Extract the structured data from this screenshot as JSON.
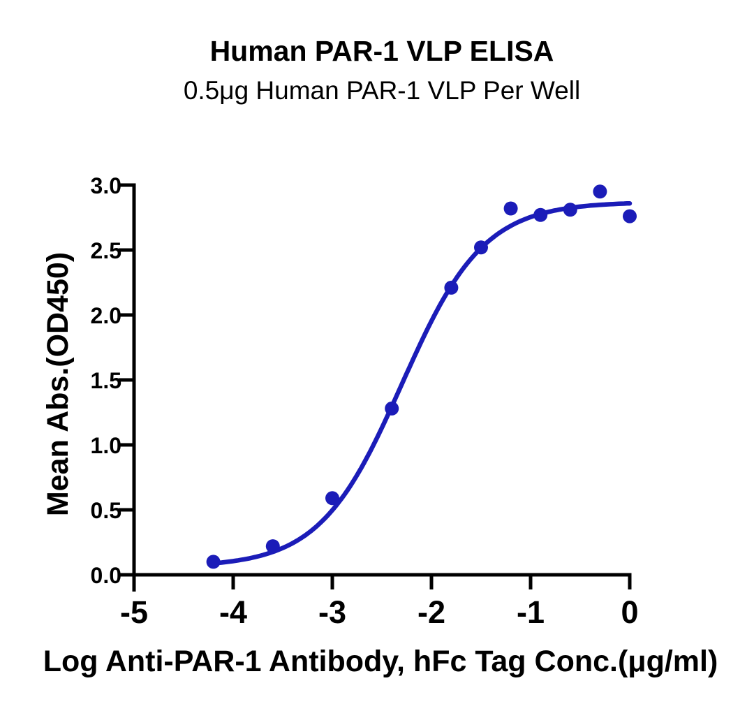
{
  "figure": {
    "title": "Human PAR-1 VLP ELISA",
    "subtitle": "0.5μg Human PAR-1 VLP Per Well"
  },
  "chart_data": {
    "type": "scatter",
    "title": "Human PAR-1 VLP ELISA",
    "subtitle": "0.5μg Human PAR-1 VLP Per Well",
    "xlabel": "Log Anti-PAR-1 Antibody, hFc Tag Conc.(μg/ml)",
    "ylabel": "Mean Abs.(OD450)",
    "xlim": [
      -5,
      0
    ],
    "ylim": [
      0,
      3
    ],
    "xticks": [
      -5,
      -4,
      -3,
      -2,
      -1,
      0
    ],
    "xtick_labels": [
      "-5",
      "-4",
      "-3",
      "-2",
      "-1",
      "0"
    ],
    "yticks": [
      0,
      0.5,
      1,
      1.5,
      2,
      2.5,
      3
    ],
    "ytick_labels": [
      "0.0",
      "0.5",
      "1.0",
      "1.5",
      "2.0",
      "2.5",
      "3.0"
    ],
    "grid": false,
    "legend": null,
    "point_color": "#1b1cb8",
    "curve_color": "#1b1cb8",
    "points": {
      "x": [
        -4.2,
        -3.6,
        -3.0,
        -2.4,
        -1.8,
        -1.5,
        -1.2,
        -0.9,
        -0.6,
        -0.3,
        0.0
      ],
      "y": [
        0.1,
        0.22,
        0.59,
        1.28,
        2.21,
        2.52,
        2.82,
        2.77,
        2.81,
        2.95,
        2.76
      ]
    },
    "fit_curve": {
      "model": "4PL",
      "bottom": 0.06,
      "top": 2.87,
      "logEC50": -2.3,
      "hill": 1.05,
      "x_start": -4.23,
      "x_end": 0.0
    }
  }
}
